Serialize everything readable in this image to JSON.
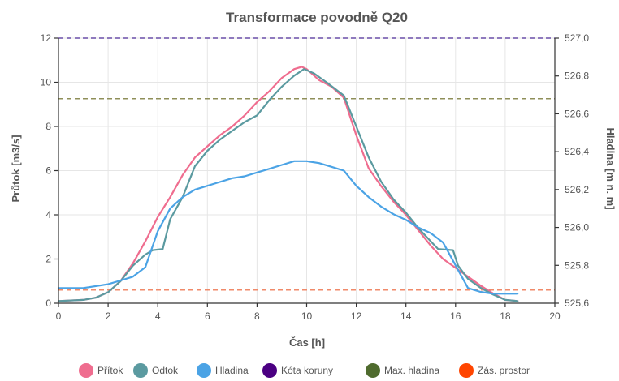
{
  "chart_data": {
    "type": "line",
    "title": "Transformace povodně Q20",
    "xlabel": "Čas [h]",
    "ylabel": "Průtok [m3/s]",
    "y2label": "Hladina [m n. m]",
    "xlim": [
      0,
      20
    ],
    "ylim": [
      0,
      12
    ],
    "y2lim": [
      525.6,
      527.0
    ],
    "x_ticks": [
      "0",
      "2",
      "4",
      "6",
      "8",
      "10",
      "12",
      "14",
      "16",
      "18",
      "20"
    ],
    "y_ticks": [
      "0",
      "2",
      "4",
      "6",
      "8",
      "10",
      "12"
    ],
    "y2_ticks": [
      "525,6",
      "525,8",
      "526,0",
      "526,2",
      "526,4",
      "526,6",
      "526,8",
      "527,0"
    ],
    "grid": true,
    "legend_position": "bottom",
    "series": [
      {
        "name": "Přítok",
        "axis": "left",
        "color": "#ef6d8f",
        "x": [
          0,
          1,
          1.5,
          2,
          2.5,
          3,
          3.5,
          4,
          4.5,
          5,
          5.5,
          6,
          6.5,
          7,
          7.5,
          8,
          8.5,
          9,
          9.5,
          9.8,
          10,
          10.5,
          11,
          11.5,
          12,
          12.5,
          13,
          13.5,
          14,
          14.5,
          15,
          15.5,
          16,
          16.5,
          17,
          17.5,
          18,
          18.5
        ],
        "y": [
          0.1,
          0.15,
          0.25,
          0.5,
          1.0,
          1.8,
          2.8,
          3.9,
          4.8,
          5.8,
          6.6,
          7.1,
          7.6,
          8.0,
          8.5,
          9.1,
          9.6,
          10.2,
          10.6,
          10.7,
          10.6,
          10.1,
          9.8,
          9.3,
          7.6,
          6.1,
          5.3,
          4.6,
          4.0,
          3.3,
          2.6,
          2.0,
          1.6,
          1.2,
          0.8,
          0.45,
          0.15,
          0.1
        ]
      },
      {
        "name": "Odtok",
        "axis": "left",
        "color": "#5b9aa0",
        "x": [
          0,
          1,
          1.5,
          2,
          2.5,
          3,
          3.5,
          3.8,
          4.2,
          4.5,
          5,
          5.5,
          6,
          6.5,
          7,
          7.5,
          8,
          8.5,
          9,
          9.5,
          9.9,
          10.3,
          10.8,
          11.5,
          12,
          12.5,
          13,
          13.5,
          14,
          14.5,
          15,
          15.3,
          15.9,
          16.1,
          16.5,
          17,
          17.5,
          18,
          18.5
        ],
        "y": [
          0.1,
          0.15,
          0.25,
          0.5,
          1.0,
          1.7,
          2.2,
          2.4,
          2.45,
          3.8,
          4.8,
          6.2,
          6.9,
          7.4,
          7.8,
          8.2,
          8.5,
          9.2,
          9.8,
          10.3,
          10.6,
          10.4,
          10.0,
          9.4,
          8.0,
          6.6,
          5.5,
          4.7,
          4.1,
          3.4,
          2.8,
          2.45,
          2.4,
          1.7,
          1.1,
          0.7,
          0.4,
          0.15,
          0.1
        ]
      },
      {
        "name": "Hladina",
        "axis": "right",
        "color": "#4ba3e5",
        "x": [
          0,
          1,
          2,
          2.5,
          3,
          3.5,
          4,
          4.5,
          5,
          5.5,
          6,
          6.5,
          7,
          7.5,
          8,
          8.5,
          9,
          9.5,
          10,
          10.5,
          11,
          11.5,
          12,
          12.5,
          13,
          13.5,
          14,
          14.5,
          15,
          15.5,
          16,
          16.5,
          17,
          17.5,
          18,
          18.5
        ],
        "y": [
          525.68,
          525.68,
          525.7,
          525.72,
          525.74,
          525.79,
          525.98,
          526.1,
          526.16,
          526.2,
          526.22,
          526.24,
          526.26,
          526.27,
          526.29,
          526.31,
          526.33,
          526.35,
          526.35,
          526.34,
          526.32,
          526.3,
          526.22,
          526.16,
          526.11,
          526.07,
          526.04,
          526.0,
          525.97,
          525.92,
          525.8,
          525.68,
          525.66,
          525.65,
          525.65,
          525.65
        ]
      }
    ],
    "reference_lines": [
      {
        "name": "Kóta koruny",
        "axis": "right",
        "value": 527.0,
        "color": "#6a4fa8",
        "legend_color": "#4b0082"
      },
      {
        "name": "Max. hladina",
        "axis": "right",
        "value": 526.68,
        "color": "#8f8f59",
        "legend_color": "#4f6b2e"
      },
      {
        "name": "Zás. prostor",
        "axis": "right",
        "value": 525.67,
        "color": "#f08a6a",
        "legend_color": "#ff4500"
      }
    ]
  }
}
